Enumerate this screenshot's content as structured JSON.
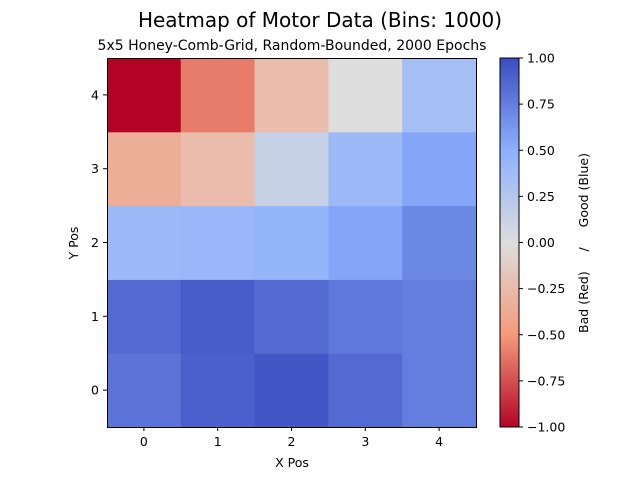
{
  "chart_data": {
    "type": "heatmap",
    "title": "Heatmap of Motor Data (Bins: 1000)",
    "subtitle": "5x5 Honey-Comb-Grid, Random-Bounded, 2000 Epochs",
    "xlabel": "X Pos",
    "ylabel": "Y Pos",
    "x_categories": [
      "0",
      "1",
      "2",
      "3",
      "4"
    ],
    "y_categories": [
      "0",
      "1",
      "2",
      "3",
      "4"
    ],
    "values_by_row_bottom_to_top": [
      [
        0.8,
        0.9,
        0.95,
        0.85,
        0.75
      ],
      [
        0.85,
        0.92,
        0.85,
        0.78,
        0.75
      ],
      [
        0.4,
        0.42,
        0.45,
        0.55,
        0.7
      ],
      [
        -0.35,
        -0.25,
        0.15,
        0.4,
        0.55
      ],
      [
        -1.0,
        -0.6,
        -0.25,
        0.0,
        0.35
      ]
    ],
    "vmin": -1.0,
    "vmax": 1.0,
    "colormap": "coolwarm",
    "colorbar": {
      "label": "Bad (Red)     /     Good (Blue)",
      "ticks": [
        -1.0,
        -0.75,
        -0.5,
        -0.25,
        0.0,
        0.25,
        0.5,
        0.75,
        1.0
      ],
      "tick_labels": [
        "−1.00",
        "−0.75",
        "−0.50",
        "−0.25",
        "0.00",
        "0.25",
        "0.50",
        "0.75",
        "1.00"
      ],
      "direction": "blue-top red-bottom"
    },
    "grid": false
  }
}
